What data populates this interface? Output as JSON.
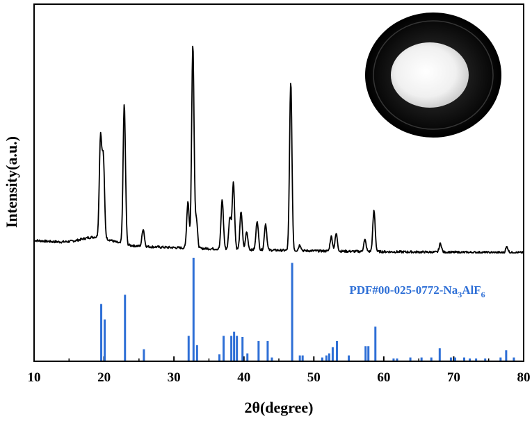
{
  "chart_data": {
    "type": "line",
    "title": "",
    "xlabel": "2θ(degree)",
    "ylabel": "Intensity(a.u.)",
    "xlim": [
      10,
      80
    ],
    "xticks": [
      "10",
      "20",
      "30",
      "40",
      "50",
      "60",
      "70",
      "80"
    ],
    "grid": false,
    "legend": "none",
    "reference_label": "PDF#00-025-0772-Na3AlF6",
    "colors": {
      "measured": "#000000",
      "reference": "#2e6fd6"
    },
    "inset": "photo of white powder in a black dish (top-right)",
    "series": [
      {
        "kind": "measured-pattern",
        "baseline": 0.05,
        "peaks": [
          {
            "x": 19.5,
            "h": 0.34
          },
          {
            "x": 19.9,
            "h": 0.27
          },
          {
            "x": 22.9,
            "h": 0.48
          },
          {
            "x": 25.6,
            "h": 0.06
          },
          {
            "x": 32.0,
            "h": 0.16
          },
          {
            "x": 32.7,
            "h": 0.7
          },
          {
            "x": 33.2,
            "h": 0.1
          },
          {
            "x": 36.9,
            "h": 0.17
          },
          {
            "x": 38.0,
            "h": 0.11
          },
          {
            "x": 38.5,
            "h": 0.23
          },
          {
            "x": 39.6,
            "h": 0.13
          },
          {
            "x": 40.4,
            "h": 0.06
          },
          {
            "x": 41.9,
            "h": 0.1
          },
          {
            "x": 43.1,
            "h": 0.09
          },
          {
            "x": 46.7,
            "h": 0.58
          },
          {
            "x": 48.0,
            "h": 0.02
          },
          {
            "x": 52.5,
            "h": 0.05
          },
          {
            "x": 53.2,
            "h": 0.06
          },
          {
            "x": 57.3,
            "h": 0.04
          },
          {
            "x": 58.6,
            "h": 0.14
          },
          {
            "x": 68.1,
            "h": 0.03
          },
          {
            "x": 77.6,
            "h": 0.02
          }
        ]
      },
      {
        "kind": "reference-sticks",
        "name": "PDF#00-025-0772-Na3AlF6",
        "sticks": [
          {
            "x": 19.6,
            "h": 0.55
          },
          {
            "x": 20.1,
            "h": 0.4
          },
          {
            "x": 23.0,
            "h": 0.64
          },
          {
            "x": 25.7,
            "h": 0.11
          },
          {
            "x": 32.1,
            "h": 0.24
          },
          {
            "x": 32.8,
            "h": 1.0
          },
          {
            "x": 33.3,
            "h": 0.15
          },
          {
            "x": 36.5,
            "h": 0.06
          },
          {
            "x": 37.1,
            "h": 0.24
          },
          {
            "x": 38.2,
            "h": 0.24
          },
          {
            "x": 38.6,
            "h": 0.28
          },
          {
            "x": 39.0,
            "h": 0.24
          },
          {
            "x": 39.8,
            "h": 0.23
          },
          {
            "x": 40.5,
            "h": 0.07
          },
          {
            "x": 42.1,
            "h": 0.19
          },
          {
            "x": 43.4,
            "h": 0.19
          },
          {
            "x": 44.0,
            "h": 0.03
          },
          {
            "x": 46.9,
            "h": 0.95
          },
          {
            "x": 48.0,
            "h": 0.05
          },
          {
            "x": 48.4,
            "h": 0.05
          },
          {
            "x": 51.2,
            "h": 0.03
          },
          {
            "x": 51.8,
            "h": 0.05
          },
          {
            "x": 52.2,
            "h": 0.07
          },
          {
            "x": 52.7,
            "h": 0.13
          },
          {
            "x": 53.3,
            "h": 0.19
          },
          {
            "x": 55.0,
            "h": 0.05
          },
          {
            "x": 57.4,
            "h": 0.14
          },
          {
            "x": 57.8,
            "h": 0.14
          },
          {
            "x": 58.8,
            "h": 0.33
          },
          {
            "x": 61.4,
            "h": 0.02
          },
          {
            "x": 61.9,
            "h": 0.02
          },
          {
            "x": 63.8,
            "h": 0.03
          },
          {
            "x": 65.4,
            "h": 0.03
          },
          {
            "x": 66.8,
            "h": 0.03
          },
          {
            "x": 68.0,
            "h": 0.12
          },
          {
            "x": 69.6,
            "h": 0.03
          },
          {
            "x": 70.2,
            "h": 0.03
          },
          {
            "x": 71.5,
            "h": 0.03
          },
          {
            "x": 72.3,
            "h": 0.02
          },
          {
            "x": 73.2,
            "h": 0.02
          },
          {
            "x": 74.5,
            "h": 0.02
          },
          {
            "x": 76.7,
            "h": 0.03
          },
          {
            "x": 77.5,
            "h": 0.1
          },
          {
            "x": 78.6,
            "h": 0.03
          }
        ]
      }
    ]
  }
}
